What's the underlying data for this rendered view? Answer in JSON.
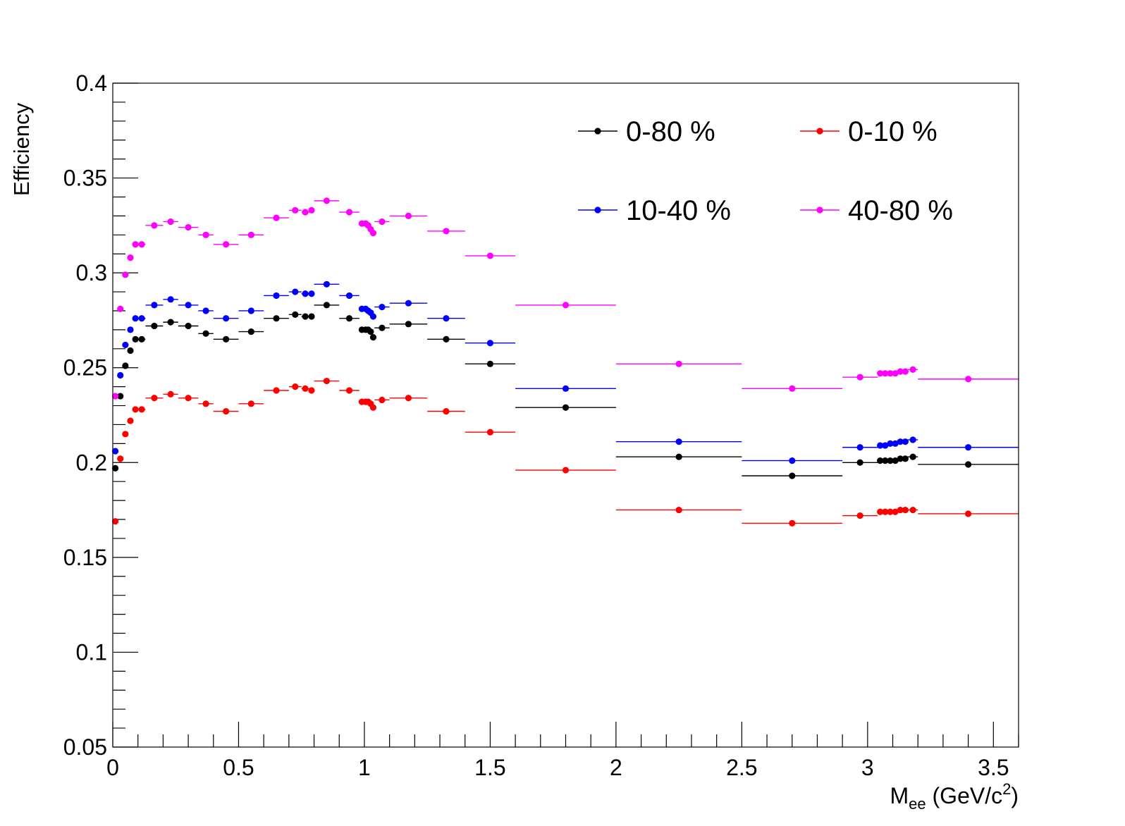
{
  "chart_data": {
    "type": "scatter",
    "title": "",
    "ylabel": "Efficiency",
    "xlabel_main": "M",
    "xlabel_sub": "ee",
    "xlabel_unit_pre": " (GeV/c",
    "xlabel_unit_sup": "2",
    "xlabel_unit_post": ")",
    "xlim": [
      0,
      3.6
    ],
    "ylim": [
      0.05,
      0.4
    ],
    "x_ticks": [
      {
        "value": 0,
        "label": "0"
      },
      {
        "value": 0.5,
        "label": "0.5"
      },
      {
        "value": 1,
        "label": "1"
      },
      {
        "value": 1.5,
        "label": "1.5"
      },
      {
        "value": 2,
        "label": "2"
      },
      {
        "value": 2.5,
        "label": "2.5"
      },
      {
        "value": 3,
        "label": "3"
      },
      {
        "value": 3.5,
        "label": "3.5"
      }
    ],
    "y_ticks": [
      {
        "value": 0.05,
        "label": "0.05"
      },
      {
        "value": 0.1,
        "label": "0.1"
      },
      {
        "value": 0.15,
        "label": "0.15"
      },
      {
        "value": 0.2,
        "label": "0.2"
      },
      {
        "value": 0.25,
        "label": "0.25"
      },
      {
        "value": 0.3,
        "label": "0.3"
      },
      {
        "value": 0.35,
        "label": "0.35"
      },
      {
        "value": 0.4,
        "label": "0.4"
      }
    ],
    "legend_position": "top-right",
    "bins": [
      [
        0.0,
        0.02
      ],
      [
        0.02,
        0.04
      ],
      [
        0.04,
        0.06
      ],
      [
        0.06,
        0.08
      ],
      [
        0.08,
        0.1
      ],
      [
        0.1,
        0.13
      ],
      [
        0.13,
        0.2
      ],
      [
        0.2,
        0.26
      ],
      [
        0.26,
        0.34
      ],
      [
        0.34,
        0.4
      ],
      [
        0.4,
        0.5
      ],
      [
        0.5,
        0.6
      ],
      [
        0.6,
        0.7
      ],
      [
        0.7,
        0.75
      ],
      [
        0.75,
        0.78
      ],
      [
        0.78,
        0.8
      ],
      [
        0.8,
        0.9
      ],
      [
        0.9,
        0.98
      ],
      [
        0.98,
        1.0
      ],
      [
        1.0,
        1.01
      ],
      [
        1.01,
        1.02
      ],
      [
        1.02,
        1.03
      ],
      [
        1.03,
        1.04
      ],
      [
        1.04,
        1.1
      ],
      [
        1.1,
        1.25
      ],
      [
        1.25,
        1.4
      ],
      [
        1.4,
        1.6
      ],
      [
        1.6,
        2.0
      ],
      [
        2.0,
        2.5
      ],
      [
        2.5,
        2.9
      ],
      [
        2.9,
        3.04
      ],
      [
        3.04,
        3.06
      ],
      [
        3.06,
        3.08
      ],
      [
        3.08,
        3.1
      ],
      [
        3.1,
        3.12
      ],
      [
        3.12,
        3.14
      ],
      [
        3.14,
        3.16
      ],
      [
        3.16,
        3.2
      ],
      [
        3.2,
        3.6
      ]
    ],
    "x": [
      0.01,
      0.03,
      0.05,
      0.07,
      0.09,
      0.115,
      0.165,
      0.23,
      0.3,
      0.37,
      0.45,
      0.55,
      0.65,
      0.725,
      0.765,
      0.79,
      0.85,
      0.94,
      0.99,
      1.005,
      1.015,
      1.025,
      1.035,
      1.07,
      1.175,
      1.325,
      1.5,
      1.8,
      2.25,
      2.7,
      2.97,
      3.05,
      3.07,
      3.09,
      3.11,
      3.13,
      3.15,
      3.18,
      3.4
    ],
    "series": [
      {
        "name": "0-80 %",
        "color": "#000000",
        "values": [
          0.197,
          0.235,
          0.251,
          0.259,
          0.265,
          0.265,
          0.272,
          0.274,
          0.272,
          0.268,
          0.265,
          0.269,
          0.276,
          0.278,
          0.277,
          0.277,
          0.283,
          0.276,
          0.27,
          0.27,
          0.27,
          0.269,
          0.266,
          0.271,
          0.273,
          0.265,
          0.252,
          0.229,
          0.203,
          0.193,
          0.2,
          0.201,
          0.201,
          0.201,
          0.201,
          0.202,
          0.202,
          0.203,
          0.199
        ]
      },
      {
        "name": "0-10 %",
        "color": "#ff0000",
        "values": [
          0.169,
          0.202,
          0.215,
          0.222,
          0.228,
          0.228,
          0.234,
          0.236,
          0.234,
          0.231,
          0.227,
          0.231,
          0.238,
          0.24,
          0.239,
          0.238,
          0.243,
          0.238,
          0.232,
          0.232,
          0.232,
          0.231,
          0.229,
          0.233,
          0.234,
          0.227,
          0.216,
          0.196,
          0.175,
          0.168,
          0.172,
          0.174,
          0.174,
          0.174,
          0.174,
          0.175,
          0.175,
          0.175,
          0.173
        ]
      },
      {
        "name": "10-40 %",
        "color": "#0000ff",
        "values": [
          0.206,
          0.246,
          0.262,
          0.27,
          0.276,
          0.276,
          0.283,
          0.286,
          0.283,
          0.28,
          0.276,
          0.28,
          0.288,
          0.29,
          0.289,
          0.289,
          0.294,
          0.288,
          0.281,
          0.281,
          0.28,
          0.279,
          0.277,
          0.282,
          0.284,
          0.276,
          0.263,
          0.239,
          0.211,
          0.201,
          0.208,
          0.209,
          0.209,
          0.21,
          0.21,
          0.211,
          0.211,
          0.212,
          0.208
        ]
      },
      {
        "name": "40-80 %",
        "color": "#ff00ff",
        "values": [
          0.235,
          0.281,
          0.299,
          0.308,
          0.315,
          0.315,
          0.325,
          0.327,
          0.324,
          0.32,
          0.315,
          0.32,
          0.329,
          0.333,
          0.332,
          0.333,
          0.338,
          0.332,
          0.326,
          0.326,
          0.325,
          0.323,
          0.321,
          0.327,
          0.33,
          0.322,
          0.309,
          0.283,
          0.252,
          0.239,
          0.245,
          0.247,
          0.247,
          0.247,
          0.247,
          0.248,
          0.248,
          0.249,
          0.244
        ]
      }
    ]
  }
}
